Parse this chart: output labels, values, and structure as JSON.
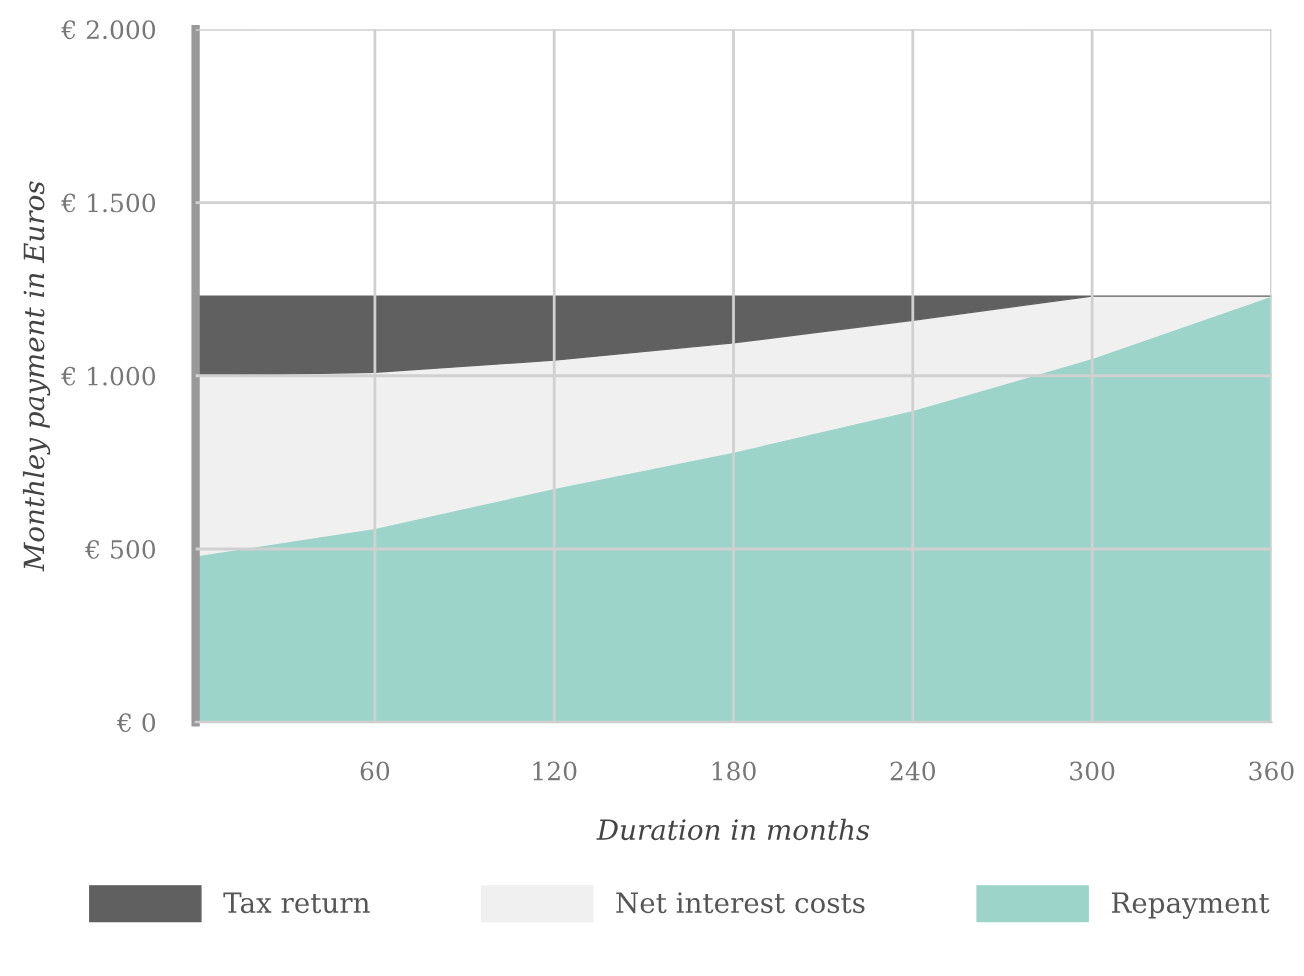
{
  "chart_data": {
    "type": "area",
    "stacked": true,
    "xlabel": "Duration in months",
    "ylabel": "Monthley payment in Euros",
    "x": [
      0,
      60,
      120,
      180,
      240,
      300,
      360
    ],
    "series": [
      {
        "name": "Repayment",
        "color": "#9dd4ca",
        "values": [
          480,
          560,
          675,
          780,
          900,
          1050,
          1230
        ]
      },
      {
        "name": "Net interest costs",
        "color": "#f0f0f0",
        "values": [
          520,
          450,
          370,
          315,
          260,
          180,
          0
        ]
      },
      {
        "name": "Tax return",
        "color": "#606060",
        "values": [
          230,
          220,
          185,
          135,
          70,
          0,
          0
        ]
      }
    ],
    "xlim": [
      0,
      360
    ],
    "xticks": [
      60,
      120,
      180,
      240,
      300,
      360
    ],
    "ylim": [
      0,
      2000
    ],
    "yticks": [
      {
        "value": 0,
        "label": "€ 0"
      },
      {
        "value": 500,
        "label": "€ 500"
      },
      {
        "value": 1000,
        "label": "€ 1.000"
      },
      {
        "value": 1500,
        "label": "€ 1.500"
      },
      {
        "value": 2000,
        "label": "€ 2.000"
      }
    ],
    "grid": true,
    "legend": "bottom"
  }
}
